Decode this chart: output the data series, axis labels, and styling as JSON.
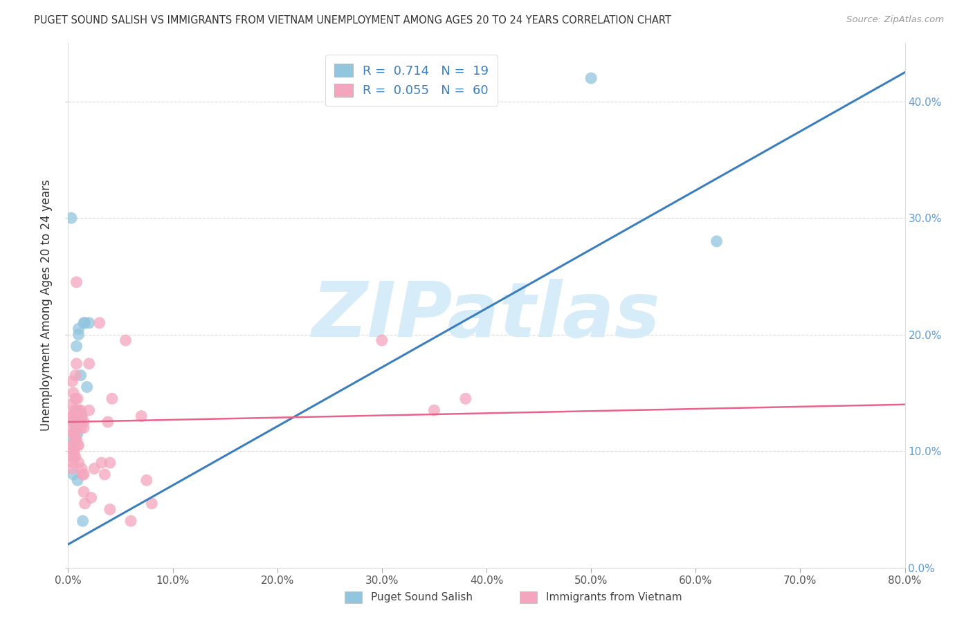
{
  "title": "PUGET SOUND SALISH VS IMMIGRANTS FROM VIETNAM UNEMPLOYMENT AMONG AGES 20 TO 24 YEARS CORRELATION CHART",
  "source": "Source: ZipAtlas.com",
  "ylabel": "Unemployment Among Ages 20 to 24 years",
  "xlabel_ticks": [
    "0.0%",
    "10.0%",
    "20.0%",
    "30.0%",
    "40.0%",
    "50.0%",
    "60.0%",
    "70.0%",
    "80.0%"
  ],
  "xlim": [
    0,
    0.8
  ],
  "ylim": [
    0,
    0.45
  ],
  "ytick_vals": [
    0.0,
    0.1,
    0.2,
    0.3,
    0.4
  ],
  "ytick_labels": [
    "0.0%",
    "10.0%",
    "20.0%",
    "30.0%",
    "40.0%"
  ],
  "blue_R": 0.714,
  "blue_N": 19,
  "pink_R": 0.055,
  "pink_N": 60,
  "blue_color": "#92c5de",
  "pink_color": "#f4a6be",
  "blue_line_color": "#3a7ebe",
  "pink_line_color": "#e8628a",
  "watermark": "ZIPatlas",
  "watermark_color": "#d6ecf8",
  "legend_label_blue": "Puget Sound Salish",
  "legend_label_pink": "Immigrants from Vietnam",
  "blue_points": [
    [
      0.003,
      0.3
    ],
    [
      0.005,
      0.125
    ],
    [
      0.005,
      0.11
    ],
    [
      0.005,
      0.08
    ],
    [
      0.008,
      0.19
    ],
    [
      0.008,
      0.135
    ],
    [
      0.009,
      0.115
    ],
    [
      0.009,
      0.075
    ],
    [
      0.01,
      0.2
    ],
    [
      0.01,
      0.205
    ],
    [
      0.012,
      0.165
    ],
    [
      0.013,
      0.13
    ],
    [
      0.014,
      0.04
    ],
    [
      0.015,
      0.21
    ],
    [
      0.016,
      0.21
    ],
    [
      0.018,
      0.155
    ],
    [
      0.02,
      0.21
    ],
    [
      0.5,
      0.42
    ],
    [
      0.62,
      0.28
    ]
  ],
  "pink_points": [
    [
      0.003,
      0.14
    ],
    [
      0.003,
      0.13
    ],
    [
      0.004,
      0.12
    ],
    [
      0.004,
      0.105
    ],
    [
      0.004,
      0.095
    ],
    [
      0.004,
      0.085
    ],
    [
      0.004,
      0.16
    ],
    [
      0.005,
      0.15
    ],
    [
      0.005,
      0.13
    ],
    [
      0.005,
      0.115
    ],
    [
      0.005,
      0.105
    ],
    [
      0.005,
      0.1
    ],
    [
      0.005,
      0.09
    ],
    [
      0.006,
      0.135
    ],
    [
      0.006,
      0.115
    ],
    [
      0.006,
      0.1
    ],
    [
      0.006,
      0.095
    ],
    [
      0.007,
      0.165
    ],
    [
      0.007,
      0.145
    ],
    [
      0.007,
      0.12
    ],
    [
      0.007,
      0.11
    ],
    [
      0.007,
      0.095
    ],
    [
      0.008,
      0.245
    ],
    [
      0.008,
      0.175
    ],
    [
      0.008,
      0.13
    ],
    [
      0.008,
      0.11
    ],
    [
      0.009,
      0.145
    ],
    [
      0.009,
      0.105
    ],
    [
      0.01,
      0.135
    ],
    [
      0.01,
      0.105
    ],
    [
      0.01,
      0.09
    ],
    [
      0.012,
      0.135
    ],
    [
      0.012,
      0.12
    ],
    [
      0.013,
      0.13
    ],
    [
      0.013,
      0.085
    ],
    [
      0.014,
      0.08
    ],
    [
      0.015,
      0.125
    ],
    [
      0.015,
      0.12
    ],
    [
      0.015,
      0.08
    ],
    [
      0.015,
      0.065
    ],
    [
      0.016,
      0.055
    ],
    [
      0.02,
      0.175
    ],
    [
      0.02,
      0.135
    ],
    [
      0.022,
      0.06
    ],
    [
      0.025,
      0.085
    ],
    [
      0.03,
      0.21
    ],
    [
      0.032,
      0.09
    ],
    [
      0.035,
      0.08
    ],
    [
      0.038,
      0.125
    ],
    [
      0.04,
      0.09
    ],
    [
      0.04,
      0.05
    ],
    [
      0.042,
      0.145
    ],
    [
      0.055,
      0.195
    ],
    [
      0.06,
      0.04
    ],
    [
      0.07,
      0.13
    ],
    [
      0.075,
      0.075
    ],
    [
      0.08,
      0.055
    ],
    [
      0.3,
      0.195
    ],
    [
      0.35,
      0.135
    ],
    [
      0.38,
      0.145
    ]
  ],
  "blue_trend_x": [
    0.0,
    0.8
  ],
  "blue_trend_y": [
    0.02,
    0.425
  ],
  "pink_trend_x": [
    0.0,
    0.8
  ],
  "pink_trend_y": [
    0.125,
    0.14
  ]
}
